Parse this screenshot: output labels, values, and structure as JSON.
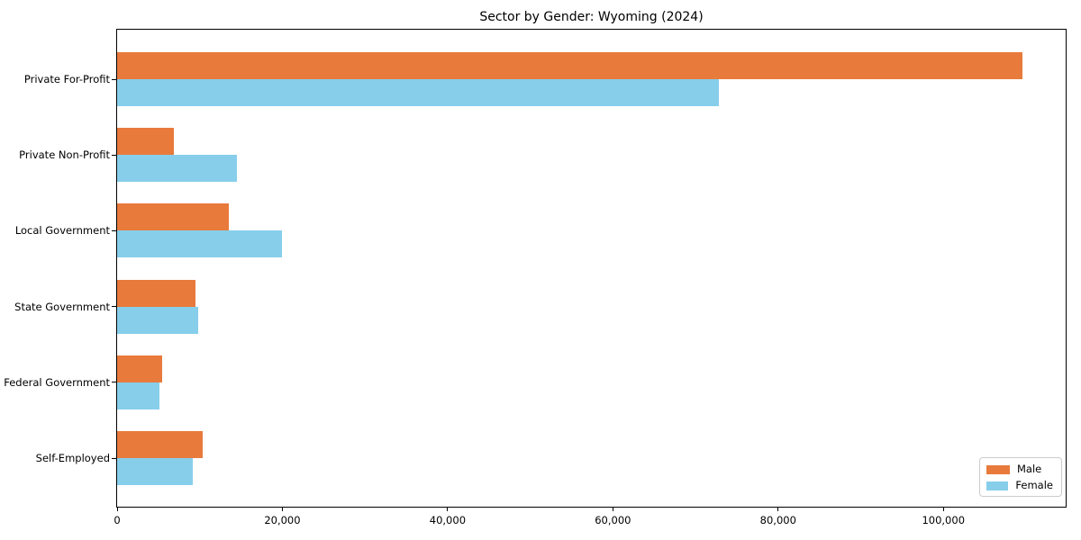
{
  "chart_data": {
    "type": "bar",
    "orientation": "horizontal",
    "title": "Sector by Gender: Wyoming (2024)",
    "categories": [
      "Private For-Profit",
      "Private Non-Profit",
      "Local Government",
      "State Government",
      "Federal Government",
      "Self-Employed"
    ],
    "series": [
      {
        "name": "Male",
        "color": "#e87a3c",
        "values": [
          109600,
          6900,
          13500,
          9500,
          5500,
          10300
        ]
      },
      {
        "name": "Female",
        "color": "#87ceeb",
        "values": [
          72800,
          14500,
          19900,
          9800,
          5100,
          9200
        ]
      }
    ],
    "xlabel": "",
    "ylabel": "",
    "xlim": [
      0,
      114800
    ],
    "xticks": [
      0,
      20000,
      40000,
      60000,
      80000,
      100000
    ],
    "xtick_labels": [
      "0",
      "20,000",
      "40,000",
      "60,000",
      "80,000",
      "100,000"
    ],
    "legend_position": "lower right",
    "grid": false,
    "background_color": "#ffffff",
    "axis_color": "#000000"
  }
}
